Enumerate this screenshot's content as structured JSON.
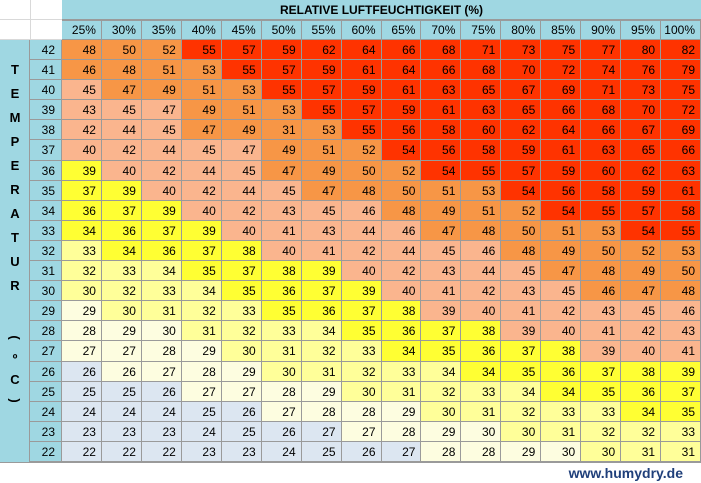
{
  "title": "RELATIVE LUFTFEUCHTIGKEIT (%)",
  "side_label_chars": [
    "T",
    "E",
    "M",
    "P",
    "E",
    "R",
    "A",
    "T",
    "U",
    "R",
    "(",
    "º",
    "C",
    ")"
  ],
  "footer": "www.humydry.de",
  "colors": {
    "header": "#9fd7e2",
    "red": "#ff3300",
    "orange": "#f79646",
    "salmon": "#fab58e",
    "yellow": "#ffff33",
    "paleyellow": "#ffff99",
    "cream": "#fdfde0",
    "blue": "#dce6f1"
  },
  "chart_data": {
    "type": "table",
    "title": "RELATIVE LUFTFEUCHTIGKEIT (%)",
    "ylabel": "TEMPERATUR (ºC)",
    "columns": [
      "25%",
      "30%",
      "35%",
      "40%",
      "45%",
      "50%",
      "55%",
      "60%",
      "65%",
      "70%",
      "75%",
      "80%",
      "85%",
      "90%",
      "95%",
      "100%"
    ],
    "temperatures": [
      42,
      41,
      40,
      39,
      38,
      37,
      36,
      35,
      34,
      33,
      32,
      31,
      30,
      29,
      28,
      27,
      26,
      25,
      24,
      23,
      22
    ],
    "values": [
      [
        48,
        50,
        52,
        55,
        57,
        59,
        62,
        64,
        66,
        68,
        71,
        73,
        75,
        77,
        80,
        82
      ],
      [
        46,
        48,
        51,
        53,
        55,
        57,
        59,
        61,
        64,
        66,
        68,
        70,
        72,
        74,
        76,
        79
      ],
      [
        45,
        47,
        49,
        51,
        53,
        55,
        57,
        59,
        61,
        63,
        65,
        67,
        69,
        71,
        73,
        75
      ],
      [
        43,
        45,
        47,
        49,
        51,
        53,
        55,
        57,
        59,
        61,
        63,
        65,
        66,
        68,
        70,
        72
      ],
      [
        42,
        44,
        45,
        47,
        49,
        31,
        53,
        55,
        56,
        58,
        60,
        62,
        64,
        66,
        67,
        69
      ],
      [
        40,
        42,
        44,
        45,
        47,
        49,
        51,
        52,
        54,
        56,
        58,
        59,
        61,
        63,
        65,
        66
      ],
      [
        39,
        40,
        42,
        44,
        45,
        47,
        49,
        50,
        52,
        54,
        55,
        57,
        59,
        60,
        62,
        63
      ],
      [
        37,
        39,
        40,
        42,
        44,
        45,
        47,
        48,
        50,
        51,
        53,
        54,
        56,
        58,
        59,
        61
      ],
      [
        36,
        37,
        39,
        40,
        42,
        43,
        45,
        46,
        48,
        49,
        51,
        52,
        54,
        55,
        57,
        58
      ],
      [
        34,
        36,
        37,
        39,
        40,
        41,
        43,
        44,
        46,
        47,
        48,
        50,
        51,
        53,
        54,
        55
      ],
      [
        33,
        34,
        36,
        37,
        38,
        40,
        41,
        42,
        44,
        45,
        46,
        48,
        49,
        50,
        52,
        53
      ],
      [
        32,
        33,
        34,
        35,
        37,
        38,
        39,
        40,
        42,
        43,
        44,
        45,
        47,
        48,
        49,
        50
      ],
      [
        30,
        32,
        33,
        34,
        35,
        36,
        37,
        39,
        40,
        41,
        42,
        43,
        45,
        46,
        47,
        48
      ],
      [
        29,
        30,
        31,
        32,
        33,
        35,
        36,
        37,
        38,
        39,
        40,
        41,
        42,
        43,
        45,
        46
      ],
      [
        28,
        29,
        30,
        31,
        32,
        33,
        34,
        35,
        36,
        37,
        38,
        39,
        40,
        41,
        42,
        43
      ],
      [
        27,
        27,
        28,
        29,
        30,
        31,
        32,
        33,
        34,
        35,
        36,
        37,
        38,
        39,
        40,
        41
      ],
      [
        26,
        26,
        27,
        28,
        29,
        30,
        31,
        32,
        33,
        34,
        34,
        35,
        36,
        37,
        38,
        39
      ],
      [
        25,
        25,
        26,
        27,
        27,
        28,
        29,
        30,
        31,
        32,
        33,
        34,
        34,
        35,
        36,
        37
      ],
      [
        24,
        24,
        24,
        25,
        26,
        27,
        28,
        28,
        29,
        30,
        31,
        32,
        33,
        33,
        34,
        35
      ],
      [
        23,
        23,
        23,
        24,
        25,
        26,
        27,
        27,
        28,
        29,
        30,
        30,
        31,
        32,
        32,
        33
      ],
      [
        22,
        22,
        22,
        23,
        23,
        24,
        25,
        26,
        27,
        28,
        28,
        29,
        30,
        30,
        31,
        31
      ]
    ],
    "colors": [
      [
        "orange",
        "orange",
        "orange",
        "red",
        "red",
        "red",
        "red",
        "red",
        "red",
        "red",
        "red",
        "red",
        "red",
        "red",
        "red",
        "red"
      ],
      [
        "orange",
        "orange",
        "orange",
        "orange",
        "red",
        "red",
        "red",
        "red",
        "red",
        "red",
        "red",
        "red",
        "red",
        "red",
        "red",
        "red"
      ],
      [
        "salmon",
        "orange",
        "orange",
        "orange",
        "orange",
        "red",
        "red",
        "red",
        "red",
        "red",
        "red",
        "red",
        "red",
        "red",
        "red",
        "red"
      ],
      [
        "salmon",
        "salmon",
        "salmon",
        "orange",
        "orange",
        "orange",
        "red",
        "red",
        "red",
        "red",
        "red",
        "red",
        "red",
        "red",
        "red",
        "red"
      ],
      [
        "salmon",
        "salmon",
        "salmon",
        "orange",
        "orange",
        "orange",
        "orange",
        "red",
        "red",
        "red",
        "red",
        "red",
        "red",
        "red",
        "red",
        "red"
      ],
      [
        "salmon",
        "salmon",
        "salmon",
        "salmon",
        "salmon",
        "orange",
        "orange",
        "orange",
        "red",
        "red",
        "red",
        "red",
        "red",
        "red",
        "red",
        "red"
      ],
      [
        "yellow",
        "salmon",
        "salmon",
        "salmon",
        "salmon",
        "orange",
        "orange",
        "orange",
        "orange",
        "red",
        "red",
        "red",
        "red",
        "red",
        "red",
        "red"
      ],
      [
        "yellow",
        "yellow",
        "salmon",
        "salmon",
        "salmon",
        "salmon",
        "orange",
        "orange",
        "orange",
        "orange",
        "orange",
        "red",
        "red",
        "red",
        "red",
        "red"
      ],
      [
        "yellow",
        "yellow",
        "yellow",
        "salmon",
        "salmon",
        "salmon",
        "salmon",
        "salmon",
        "orange",
        "orange",
        "orange",
        "orange",
        "red",
        "red",
        "red",
        "red"
      ],
      [
        "yellow",
        "yellow",
        "yellow",
        "yellow",
        "salmon",
        "salmon",
        "salmon",
        "salmon",
        "salmon",
        "orange",
        "orange",
        "orange",
        "orange",
        "orange",
        "red",
        "red"
      ],
      [
        "paleyellow",
        "yellow",
        "yellow",
        "yellow",
        "yellow",
        "salmon",
        "salmon",
        "salmon",
        "salmon",
        "salmon",
        "salmon",
        "orange",
        "orange",
        "orange",
        "orange",
        "orange"
      ],
      [
        "paleyellow",
        "paleyellow",
        "paleyellow",
        "yellow",
        "yellow",
        "yellow",
        "yellow",
        "salmon",
        "salmon",
        "salmon",
        "salmon",
        "salmon",
        "orange",
        "orange",
        "orange",
        "orange"
      ],
      [
        "paleyellow",
        "paleyellow",
        "paleyellow",
        "paleyellow",
        "yellow",
        "yellow",
        "yellow",
        "yellow",
        "salmon",
        "salmon",
        "salmon",
        "salmon",
        "salmon",
        "orange",
        "orange",
        "orange"
      ],
      [
        "cream",
        "paleyellow",
        "paleyellow",
        "paleyellow",
        "paleyellow",
        "yellow",
        "yellow",
        "yellow",
        "yellow",
        "salmon",
        "salmon",
        "salmon",
        "salmon",
        "salmon",
        "salmon",
        "salmon"
      ],
      [
        "cream",
        "cream",
        "cream",
        "paleyellow",
        "paleyellow",
        "paleyellow",
        "paleyellow",
        "yellow",
        "yellow",
        "yellow",
        "yellow",
        "salmon",
        "salmon",
        "salmon",
        "salmon",
        "salmon"
      ],
      [
        "cream",
        "cream",
        "cream",
        "cream",
        "paleyellow",
        "paleyellow",
        "paleyellow",
        "paleyellow",
        "yellow",
        "yellow",
        "yellow",
        "yellow",
        "yellow",
        "salmon",
        "salmon",
        "salmon"
      ],
      [
        "blue",
        "cream",
        "cream",
        "cream",
        "cream",
        "paleyellow",
        "paleyellow",
        "paleyellow",
        "paleyellow",
        "paleyellow",
        "yellow",
        "yellow",
        "yellow",
        "yellow",
        "yellow",
        "yellow"
      ],
      [
        "blue",
        "blue",
        "blue",
        "cream",
        "cream",
        "cream",
        "cream",
        "paleyellow",
        "paleyellow",
        "paleyellow",
        "paleyellow",
        "paleyellow",
        "yellow",
        "yellow",
        "yellow",
        "yellow"
      ],
      [
        "blue",
        "blue",
        "blue",
        "blue",
        "blue",
        "cream",
        "cream",
        "cream",
        "cream",
        "paleyellow",
        "paleyellow",
        "paleyellow",
        "paleyellow",
        "paleyellow",
        "yellow",
        "yellow"
      ],
      [
        "blue",
        "blue",
        "blue",
        "blue",
        "blue",
        "blue",
        "blue",
        "cream",
        "cream",
        "cream",
        "cream",
        "paleyellow",
        "paleyellow",
        "paleyellow",
        "paleyellow",
        "paleyellow"
      ],
      [
        "blue",
        "blue",
        "blue",
        "blue",
        "blue",
        "blue",
        "blue",
        "blue",
        "blue",
        "cream",
        "cream",
        "cream",
        "cream",
        "paleyellow",
        "paleyellow",
        "paleyellow"
      ]
    ]
  }
}
